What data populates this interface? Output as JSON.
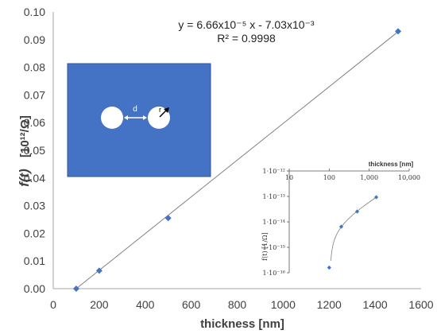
{
  "chart_data": [
    {
      "type": "scatter",
      "x": [
        100,
        200,
        500,
        1500
      ],
      "y": [
        0.0,
        0.0065,
        0.0255,
        0.093
      ],
      "xlim": [
        0,
        1600
      ],
      "ylim": [
        0,
        0.1
      ],
      "xticks": [
        "0",
        "200",
        "400",
        "600",
        "800",
        "1000",
        "1200",
        "1400",
        "1600"
      ],
      "yticks": [
        "0.00",
        "0.01",
        "0.02",
        "0.03",
        "0.04",
        "0.05",
        "0.06",
        "0.07",
        "0.08",
        "0.09",
        "0.10"
      ],
      "xlabel": "thickness [nm]",
      "ylabel_prefix": "f(t)",
      "ylabel_units": "[10¹²/Ω]",
      "trendline": {
        "slope": 6.66e-05,
        "intercept": -0.00703,
        "equation": "y = 6.66x10⁻⁵ x - 7.03x10⁻³",
        "r_squared": "R² = 0.9998"
      },
      "marker_color": "#4472C4",
      "grid": false
    },
    {
      "type": "scatter",
      "scale": "log-log",
      "x": [
        100,
        200,
        500,
        1500
      ],
      "y": [
        1.6e-16,
        6.5e-15,
        2.55e-14,
        9.3e-14
      ],
      "xlim": [
        10,
        10000
      ],
      "ylim": [
        1e-16,
        1e-12
      ],
      "xticks": [
        "10",
        "100",
        "1,000",
        "10,000"
      ],
      "yticks": [
        "1·10⁻¹²",
        "1·10⁻¹³",
        "1·10⁻¹⁴",
        "1·10⁻¹⁵",
        "1·10⁻¹⁶"
      ],
      "xlabel": "thickness [nm]",
      "ylabel": "f(t)  [1/Ω]",
      "marker_color": "#4472C4",
      "x_axis_position": "top"
    }
  ],
  "schematic": {
    "background_color": "#4472C4",
    "distance_label": "d",
    "radius_label": "r"
  }
}
